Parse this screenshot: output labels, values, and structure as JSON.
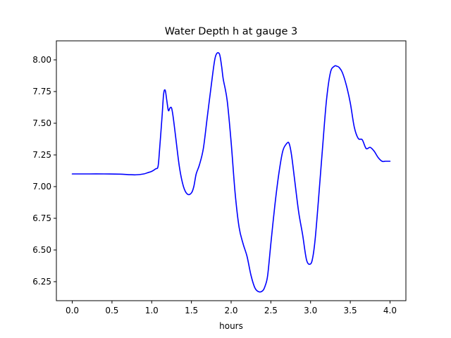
{
  "chart_data": {
    "type": "line",
    "title": "Water Depth h at gauge 3",
    "xlabel": "hours",
    "ylabel": "",
    "xlim": [
      -0.2,
      4.2
    ],
    "ylim": [
      6.1,
      8.15
    ],
    "grid": false,
    "xticks": [
      0.0,
      0.5,
      1.0,
      1.5,
      2.0,
      2.5,
      3.0,
      3.5,
      4.0
    ],
    "xtick_labels": [
      "0.0",
      "0.5",
      "1.0",
      "1.5",
      "2.0",
      "2.5",
      "3.0",
      "3.5",
      "4.0"
    ],
    "yticks": [
      6.25,
      6.5,
      6.75,
      7.0,
      7.25,
      7.5,
      7.75,
      8.0
    ],
    "ytick_labels": [
      "6.25",
      "6.50",
      "6.75",
      "7.00",
      "7.25",
      "7.50",
      "7.75",
      "8.00"
    ],
    "colors": {
      "line": "#0000ff",
      "axes": "#000000",
      "background": "#ffffff"
    },
    "series": [
      {
        "x": [
          0.0,
          0.2,
          0.4,
          0.6,
          0.7,
          0.8,
          0.9,
          0.95,
          1.0,
          1.05,
          1.08,
          1.1,
          1.13,
          1.15,
          1.17,
          1.19,
          1.21,
          1.23,
          1.25,
          1.27,
          1.3,
          1.35,
          1.4,
          1.45,
          1.5,
          1.53,
          1.56,
          1.6,
          1.65,
          1.7,
          1.75,
          1.8,
          1.85,
          1.88,
          1.9,
          1.95,
          2.0,
          2.05,
          2.1,
          2.15,
          2.2,
          2.25,
          2.3,
          2.35,
          2.4,
          2.43,
          2.46,
          2.5,
          2.55,
          2.6,
          2.65,
          2.7,
          2.73,
          2.76,
          2.8,
          2.85,
          2.9,
          2.95,
          3.0,
          3.03,
          3.06,
          3.1,
          3.15,
          3.2,
          3.25,
          3.3,
          3.33,
          3.36,
          3.4,
          3.45,
          3.5,
          3.55,
          3.6,
          3.65,
          3.7,
          3.75,
          3.8,
          3.85,
          3.9,
          3.94,
          3.97,
          4.0
        ],
        "values": [
          7.1,
          7.1,
          7.1,
          7.098,
          7.095,
          7.093,
          7.1,
          7.11,
          7.12,
          7.14,
          7.16,
          7.3,
          7.55,
          7.73,
          7.76,
          7.68,
          7.6,
          7.62,
          7.62,
          7.55,
          7.4,
          7.15,
          7.0,
          6.94,
          6.95,
          7.0,
          7.1,
          7.17,
          7.3,
          7.55,
          7.8,
          8.02,
          8.05,
          7.95,
          7.85,
          7.68,
          7.35,
          6.95,
          6.68,
          6.55,
          6.45,
          6.3,
          6.2,
          6.17,
          6.18,
          6.22,
          6.3,
          6.55,
          6.85,
          7.1,
          7.28,
          7.34,
          7.34,
          7.25,
          7.05,
          6.8,
          6.62,
          6.42,
          6.39,
          6.45,
          6.6,
          6.9,
          7.3,
          7.68,
          7.9,
          7.95,
          7.95,
          7.94,
          7.9,
          7.8,
          7.66,
          7.47,
          7.38,
          7.37,
          7.3,
          7.31,
          7.28,
          7.23,
          7.2,
          7.2,
          7.2,
          7.2
        ]
      }
    ]
  }
}
